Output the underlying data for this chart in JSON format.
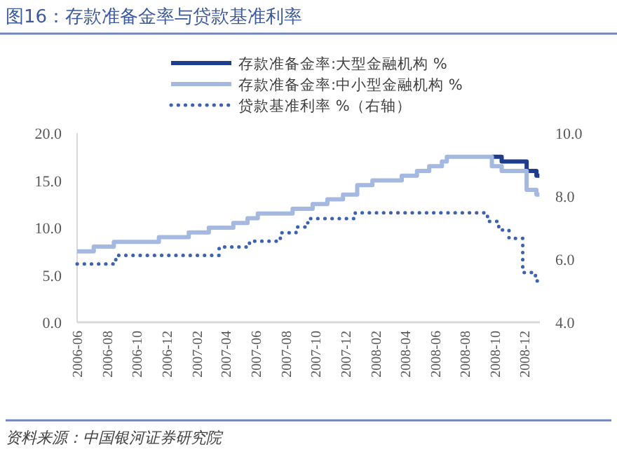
{
  "chart_data": {
    "type": "step",
    "title": "图16：存款准备金率与贷款基准利率",
    "xlim": [
      "2006-06-01",
      "2009-01-01"
    ],
    "xticks": [
      "2006-06",
      "2006-08",
      "2006-10",
      "2006-12",
      "2007-02",
      "2007-04",
      "2007-06",
      "2007-08",
      "2007-10",
      "2007-12",
      "2008-02",
      "2008-04",
      "2008-06",
      "2008-08",
      "2008-10",
      "2008-12"
    ],
    "ylim": [
      0,
      20
    ],
    "yticks": [
      {
        "value": 0,
        "label": "0.0"
      },
      {
        "value": 5,
        "label": "5.0"
      },
      {
        "value": 10,
        "label": "10.0"
      },
      {
        "value": 15,
        "label": "15.0"
      },
      {
        "value": 20,
        "label": "20.0"
      }
    ],
    "y2lim": [
      4,
      10
    ],
    "y2ticks": [
      {
        "value": 4,
        "label": "4.0"
      },
      {
        "value": 6,
        "label": "6.0"
      },
      {
        "value": 8,
        "label": "8.0"
      },
      {
        "value": 10,
        "label": "10.0"
      }
    ],
    "legend": "top right",
    "series": [
      {
        "name": "存款准备金率:大型金融机构 %",
        "color": "#1f3d8c",
        "line_style": "solid",
        "x": [
          "2008-09-25",
          "2008-10-15",
          "2008-12-05",
          "2008-12-25",
          "2008-12-31"
        ],
        "values": [
          17.5,
          17.0,
          16.0,
          15.5,
          15.5
        ]
      },
      {
        "name": "存款准备金率:中小型金融机构 %",
        "color": "#a4b8e0",
        "line_style": "solid",
        "x": [
          "2006-06-01",
          "2006-07-05",
          "2006-08-15",
          "2006-11-15",
          "2007-01-15",
          "2007-02-25",
          "2007-04-16",
          "2007-05-15",
          "2007-06-05",
          "2007-08-15",
          "2007-09-25",
          "2007-10-25",
          "2007-11-26",
          "2007-12-25",
          "2008-01-25",
          "2008-03-25",
          "2008-04-25",
          "2008-05-20",
          "2008-06-15",
          "2008-06-25",
          "2008-09-25",
          "2008-10-15",
          "2008-12-05",
          "2008-12-25",
          "2008-12-31"
        ],
        "values": [
          7.5,
          8.0,
          8.5,
          9.0,
          9.5,
          10.0,
          10.5,
          11.0,
          11.5,
          12.0,
          12.5,
          13.0,
          13.5,
          14.5,
          15.0,
          15.5,
          16.0,
          16.5,
          17.0,
          17.5,
          16.5,
          16.0,
          14.0,
          13.5,
          13.5
        ]
      },
      {
        "name": "贷款基准利率 %（右轴）",
        "color": "#3c62b0",
        "line_style": "dotted",
        "axis": "y2",
        "x": [
          "2006-06-01",
          "2006-08-19",
          "2007-03-18",
          "2007-05-19",
          "2007-07-21",
          "2007-08-22",
          "2007-09-15",
          "2007-12-21",
          "2008-09-16",
          "2008-10-09",
          "2008-10-30",
          "2008-11-27",
          "2008-12-23",
          "2008-12-31"
        ],
        "values": [
          5.85,
          6.12,
          6.39,
          6.57,
          6.84,
          7.02,
          7.29,
          7.47,
          7.2,
          6.93,
          6.66,
          5.58,
          5.31,
          5.31
        ]
      }
    ],
    "annotations": [
      "资料来源：中国银河证券研究院"
    ]
  }
}
